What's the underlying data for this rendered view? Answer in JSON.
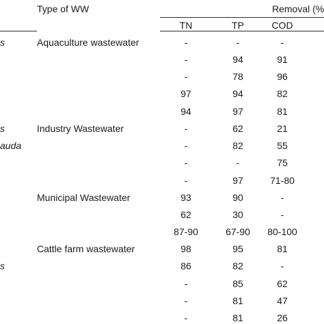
{
  "header": {
    "type_of_ww": "Type of WW",
    "removal": "Removal (%",
    "col_tn": "TN",
    "col_tp": "TP",
    "col_cod": "COD"
  },
  "left_fragments": [
    "s",
    "s",
    "auda",
    "s"
  ],
  "groups": [
    {
      "label": "Aquaculture wastewater"
    },
    {
      "label": "Industry Wastewater"
    },
    {
      "label": "Municipal Wastewater"
    },
    {
      "label": "Cattle farm wastewater"
    }
  ],
  "rows": [
    {
      "tn": "-",
      "tp": "-",
      "cod": "-"
    },
    {
      "tn": "-",
      "tp": "94",
      "cod": "91"
    },
    {
      "tn": "-",
      "tp": "78",
      "cod": "96"
    },
    {
      "tn": "97",
      "tp": "94",
      "cod": "82"
    },
    {
      "tn": "94",
      "tp": "97",
      "cod": "81"
    },
    {
      "tn": "-",
      "tp": "62",
      "cod": "21"
    },
    {
      "tn": "-",
      "tp": "82",
      "cod": "55"
    },
    {
      "tn": "-",
      "tp": "-",
      "cod": "75"
    },
    {
      "tn": "-",
      "tp": "97",
      "cod": "71-80"
    },
    {
      "tn": "93",
      "tp": "90",
      "cod": "-"
    },
    {
      "tn": "62",
      "tp": "30",
      "cod": "-"
    },
    {
      "tn": "87-90",
      "tp": "67-90",
      "cod": "80-100"
    },
    {
      "tn": "98",
      "tp": "95",
      "cod": "81"
    },
    {
      "tn": "86",
      "tp": "82",
      "cod": "-"
    },
    {
      "tn": "-",
      "tp": "85",
      "cod": "62"
    },
    {
      "tn": "-",
      "tp": "81",
      "cod": "47"
    },
    {
      "tn": "-",
      "tp": "81",
      "cod": "26"
    }
  ]
}
